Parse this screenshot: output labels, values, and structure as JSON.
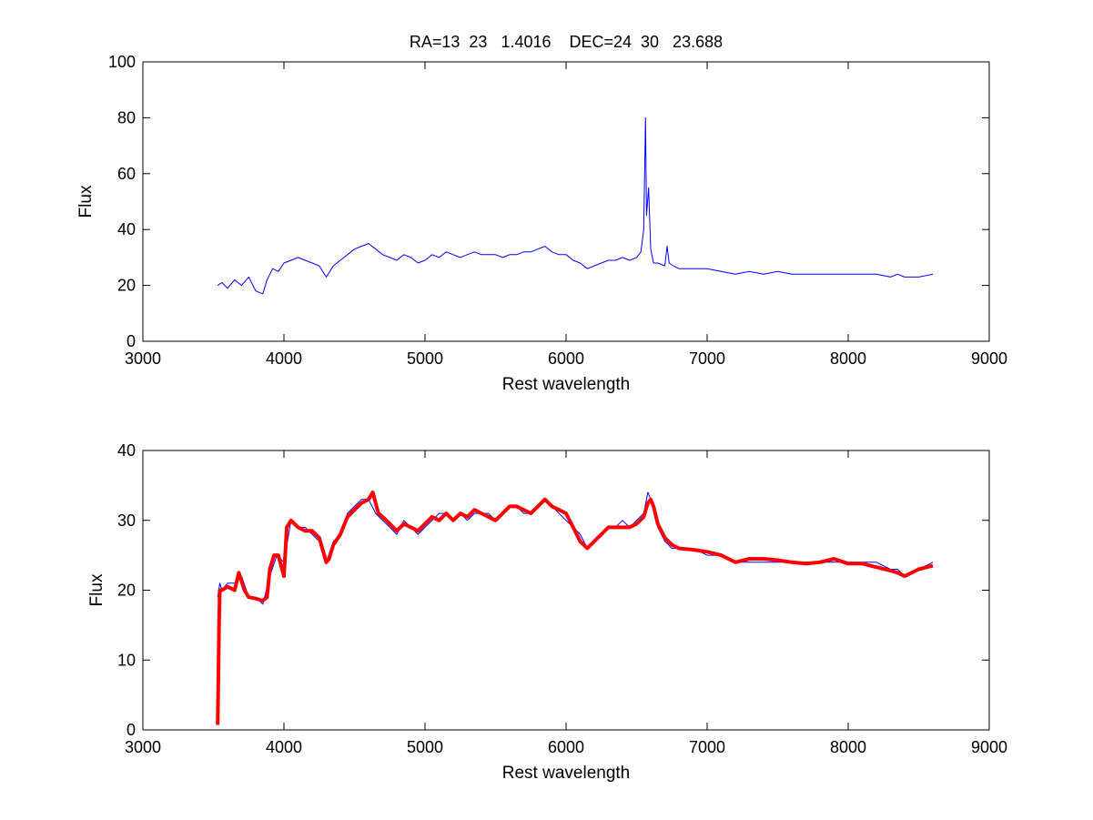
{
  "chart_data": [
    {
      "type": "line",
      "title": "RA=13  23   1.4016    DEC=24  30   23.688",
      "xlabel": "Rest wavelength",
      "ylabel": "Flux",
      "xlim": [
        3000,
        9000
      ],
      "ylim": [
        0,
        100
      ],
      "xticks": [
        "3000",
        "4000",
        "5000",
        "6000",
        "7000",
        "8000",
        "9000"
      ],
      "yticks": [
        "0",
        "20",
        "40",
        "60",
        "80",
        "100"
      ],
      "grid": false,
      "legend": "none",
      "series": [
        {
          "color": "#0000ff",
          "x": [
            3530,
            3560,
            3600,
            3650,
            3700,
            3750,
            3800,
            3850,
            3880,
            3920,
            3960,
            4000,
            4050,
            4100,
            4150,
            4200,
            4250,
            4300,
            4350,
            4400,
            4450,
            4500,
            4550,
            4600,
            4650,
            4700,
            4750,
            4800,
            4850,
            4900,
            4950,
            5000,
            5050,
            5100,
            5150,
            5200,
            5250,
            5300,
            5350,
            5400,
            5450,
            5500,
            5550,
            5600,
            5650,
            5700,
            5750,
            5800,
            5850,
            5900,
            5950,
            6000,
            6050,
            6100,
            6150,
            6200,
            6250,
            6300,
            6350,
            6400,
            6450,
            6500,
            6530,
            6550,
            6563,
            6570,
            6585,
            6600,
            6620,
            6650,
            6700,
            6716,
            6731,
            6760,
            6800,
            6900,
            7000,
            7100,
            7200,
            7300,
            7400,
            7500,
            7600,
            7700,
            7800,
            7900,
            8000,
            8100,
            8200,
            8300,
            8350,
            8400,
            8500,
            8600
          ],
          "y": [
            20,
            21,
            19,
            22,
            20,
            23,
            18,
            17,
            22,
            26,
            25,
            28,
            29,
            30,
            29,
            28,
            27,
            23,
            27,
            29,
            31,
            33,
            34,
            35,
            33,
            31,
            30,
            29,
            31,
            30,
            28,
            29,
            31,
            30,
            32,
            31,
            30,
            31,
            32,
            31,
            31,
            31,
            30,
            31,
            31,
            32,
            32,
            33,
            34,
            32,
            31,
            31,
            29,
            28,
            26,
            27,
            28,
            29,
            29,
            30,
            29,
            30,
            32,
            40,
            80,
            45,
            55,
            33,
            28,
            28,
            27,
            34,
            28,
            27,
            26,
            26,
            26,
            25,
            24,
            25,
            24,
            25,
            24,
            24,
            24,
            24,
            24,
            24,
            24,
            23,
            24,
            23,
            23,
            24
          ]
        }
      ]
    },
    {
      "type": "line",
      "xlabel": "Rest wavelength",
      "ylabel": "Flux",
      "xlim": [
        3000,
        9000
      ],
      "ylim": [
        0,
        40
      ],
      "xticks": [
        "3000",
        "4000",
        "5000",
        "6000",
        "7000",
        "8000",
        "9000"
      ],
      "yticks": [
        "0",
        "10",
        "20",
        "30",
        "40"
      ],
      "grid": false,
      "legend": "none",
      "series": [
        {
          "color": "#0000ff",
          "x": [
            3530,
            3545,
            3560,
            3600,
            3650,
            3700,
            3750,
            3800,
            3850,
            3900,
            3950,
            4000,
            4050,
            4100,
            4150,
            4200,
            4250,
            4300,
            4350,
            4400,
            4450,
            4500,
            4550,
            4600,
            4650,
            4700,
            4750,
            4800,
            4850,
            4900,
            4950,
            5000,
            5050,
            5100,
            5150,
            5200,
            5250,
            5300,
            5350,
            5400,
            5450,
            5500,
            5550,
            5600,
            5650,
            5700,
            5750,
            5800,
            5850,
            5900,
            5950,
            6000,
            6050,
            6100,
            6150,
            6200,
            6250,
            6300,
            6350,
            6400,
            6450,
            6500,
            6550,
            6580,
            6600,
            6650,
            6700,
            6750,
            6800,
            6900,
            7000,
            7100,
            7200,
            7300,
            7400,
            7500,
            7600,
            7700,
            7800,
            7900,
            8000,
            8100,
            8200,
            8300,
            8350,
            8400,
            8500,
            8600
          ],
          "y": [
            19,
            21,
            20,
            21,
            21,
            22,
            19,
            19,
            18,
            22,
            25,
            24,
            30,
            29,
            29,
            28,
            27,
            24,
            27,
            28,
            31,
            32,
            33,
            33,
            31,
            30,
            29,
            28,
            30,
            29,
            28,
            29,
            30,
            31,
            31,
            30,
            31,
            30,
            31,
            31,
            31,
            30,
            31,
            32,
            32,
            31,
            31,
            32,
            33,
            32,
            31,
            30,
            29,
            28,
            26,
            27,
            28,
            29,
            29,
            30,
            29,
            30,
            31,
            34,
            33,
            29,
            27,
            26,
            26,
            26,
            25,
            25,
            24,
            24,
            24,
            24,
            24,
            24,
            24,
            24,
            24,
            24,
            24,
            23,
            23,
            22,
            23,
            24
          ]
        },
        {
          "color": "#ff0000",
          "x": [
            3530,
            3535,
            3540,
            3545,
            3560,
            3600,
            3650,
            3680,
            3720,
            3750,
            3800,
            3850,
            3880,
            3900,
            3930,
            3960,
            4000,
            4020,
            4050,
            4100,
            4150,
            4200,
            4250,
            4300,
            4320,
            4350,
            4400,
            4450,
            4500,
            4550,
            4600,
            4630,
            4670,
            4700,
            4750,
            4800,
            4850,
            4900,
            4950,
            5000,
            5050,
            5100,
            5150,
            5200,
            5250,
            5300,
            5350,
            5400,
            5450,
            5500,
            5550,
            5600,
            5650,
            5700,
            5750,
            5800,
            5850,
            5900,
            5950,
            6000,
            6050,
            6100,
            6150,
            6200,
            6250,
            6300,
            6350,
            6400,
            6450,
            6500,
            6550,
            6580,
            6600,
            6620,
            6650,
            6700,
            6750,
            6800,
            6900,
            7000,
            7100,
            7200,
            7300,
            7400,
            7500,
            7600,
            7700,
            7800,
            7900,
            8000,
            8100,
            8200,
            8300,
            8350,
            8400,
            8500,
            8600
          ],
          "y": [
            0.7,
            7,
            15,
            20,
            20,
            20.5,
            20,
            22.5,
            20,
            19,
            18.8,
            18.5,
            19,
            23,
            25,
            25,
            22,
            29,
            30,
            29,
            28.5,
            28.5,
            27.5,
            24,
            24.5,
            26.5,
            28,
            30.5,
            31.5,
            32.5,
            33,
            34,
            31,
            30.5,
            29.5,
            28.5,
            29.5,
            29,
            28.5,
            29.5,
            30.5,
            30,
            31,
            30,
            31,
            30.5,
            31.5,
            31,
            30.5,
            30,
            31,
            32,
            32,
            31.5,
            31,
            32,
            33,
            32,
            31.5,
            31,
            29,
            27,
            26,
            27,
            28,
            29,
            29,
            29,
            29,
            29.5,
            30.5,
            32.5,
            33,
            32,
            29.5,
            27.5,
            26.5,
            26,
            25.8,
            25.5,
            25,
            24,
            24.5,
            24.5,
            24.3,
            24,
            23.8,
            24,
            24.5,
            23.8,
            23.8,
            23.3,
            22.8,
            22.5,
            22,
            23,
            23.5
          ]
        }
      ]
    }
  ]
}
